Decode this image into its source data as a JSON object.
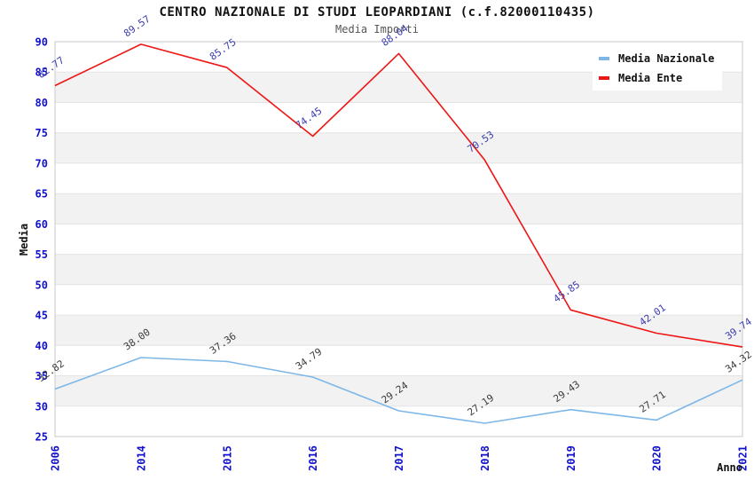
{
  "chart_data": {
    "type": "line",
    "title": "CENTRO NAZIONALE DI STUDI LEOPARDIANI (c.f.82000110435)",
    "subtitle": "Media Importi",
    "xlabel": "Anno",
    "ylabel": "Media",
    "categories": [
      "2006",
      "2014",
      "2015",
      "2016",
      "2017",
      "2018",
      "2019",
      "2020",
      "2021"
    ],
    "series": [
      {
        "name": "Media Nazionale",
        "color": "#7db7e8",
        "label_color": "#3a3a3a",
        "values": [
          32.82,
          38.0,
          37.36,
          34.79,
          29.24,
          27.19,
          29.43,
          27.71,
          34.32
        ]
      },
      {
        "name": "Media Ente",
        "color": "#ee1515",
        "label_color": "#3c3cae",
        "values": [
          82.77,
          89.57,
          85.75,
          74.45,
          88.04,
          70.53,
          45.85,
          42.01,
          39.74
        ]
      }
    ],
    "ylim": [
      25,
      90
    ],
    "ytick_step": 5,
    "grid": "horizontal-bands",
    "band_colors": [
      "#ffffff",
      "#f2f2f2"
    ],
    "gridline_color": "#e4e4e4",
    "border_color": "#c9c9c9",
    "axis_tick_color": "#1111cc",
    "legend_position": "top-right",
    "label_decimals": 2
  }
}
